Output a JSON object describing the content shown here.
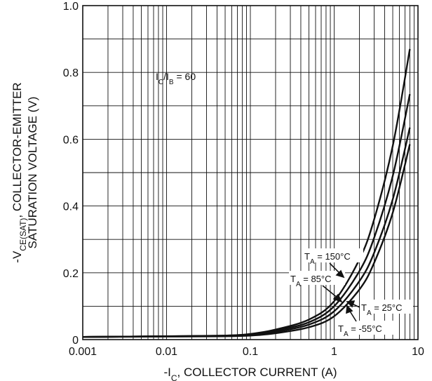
{
  "chart_data": {
    "type": "line",
    "x_scale": "log",
    "xlim": [
      0.001,
      10
    ],
    "ylim": [
      0,
      1.0
    ],
    "xlabel_main": "-I",
    "xlabel_sub": "C",
    "xlabel_rest": ", COLLECTOR CURRENT (A)",
    "ylabel_line1_main": "-V",
    "ylabel_line1_sub": "CE(SAT)",
    "ylabel_line1_rest": ",  COLLECTOR-EMITTER",
    "ylabel_line2": "SATURATION VOLTAGE (V)",
    "x_ticks": [
      {
        "value": 0.001,
        "label": "0.001"
      },
      {
        "value": 0.01,
        "label": "0.01"
      },
      {
        "value": 0.1,
        "label": "0.1"
      },
      {
        "value": 1,
        "label": "1"
      },
      {
        "value": 10,
        "label": "10"
      }
    ],
    "y_ticks": [
      {
        "value": 0,
        "label": "0"
      },
      {
        "value": 0.2,
        "label": "0.2"
      },
      {
        "value": 0.4,
        "label": "0.4"
      },
      {
        "value": 0.6,
        "label": "0.6"
      },
      {
        "value": 0.8,
        "label": "0.8"
      },
      {
        "value": 1.0,
        "label": "1.0"
      }
    ],
    "grid": true,
    "condition": {
      "main": "I",
      "sub1": "C",
      "mid": "/I",
      "sub2": "B",
      "rest": " = 60"
    },
    "series": [
      {
        "name": "T_A = 150°C",
        "x": [
          0.001,
          0.01,
          0.05,
          0.1,
          0.2,
          0.5,
          1,
          2,
          3,
          5,
          8
        ],
        "y": [
          0.008,
          0.01,
          0.012,
          0.017,
          0.03,
          0.06,
          0.115,
          0.24,
          0.36,
          0.58,
          0.87
        ]
      },
      {
        "name": "T_A = 85°C",
        "x": [
          0.001,
          0.01,
          0.05,
          0.1,
          0.2,
          0.5,
          1,
          2,
          3,
          5,
          8
        ],
        "y": [
          0.008,
          0.01,
          0.012,
          0.016,
          0.027,
          0.052,
          0.1,
          0.205,
          0.305,
          0.49,
          0.735
        ]
      },
      {
        "name": "T_A = 25°C",
        "x": [
          0.001,
          0.01,
          0.05,
          0.1,
          0.2,
          0.5,
          1,
          2,
          3,
          5,
          8
        ],
        "y": [
          0.008,
          0.01,
          0.011,
          0.014,
          0.023,
          0.045,
          0.085,
          0.175,
          0.26,
          0.42,
          0.635
        ]
      },
      {
        "name": "T_A = -55°C",
        "x": [
          0.001,
          0.01,
          0.05,
          0.1,
          0.2,
          0.5,
          1,
          2,
          3,
          5,
          8
        ],
        "y": [
          0.008,
          0.009,
          0.01,
          0.012,
          0.019,
          0.037,
          0.07,
          0.15,
          0.23,
          0.38,
          0.585
        ]
      }
    ],
    "annotations": [
      {
        "main": "T",
        "sub": "A",
        "rest": " = 150°C"
      },
      {
        "main": "T",
        "sub": "A",
        "rest": " = 85°C"
      },
      {
        "main": "T",
        "sub": "A",
        "rest": " = 25°C"
      },
      {
        "main": "T",
        "sub": "A",
        "rest": " = -55°C"
      }
    ]
  }
}
